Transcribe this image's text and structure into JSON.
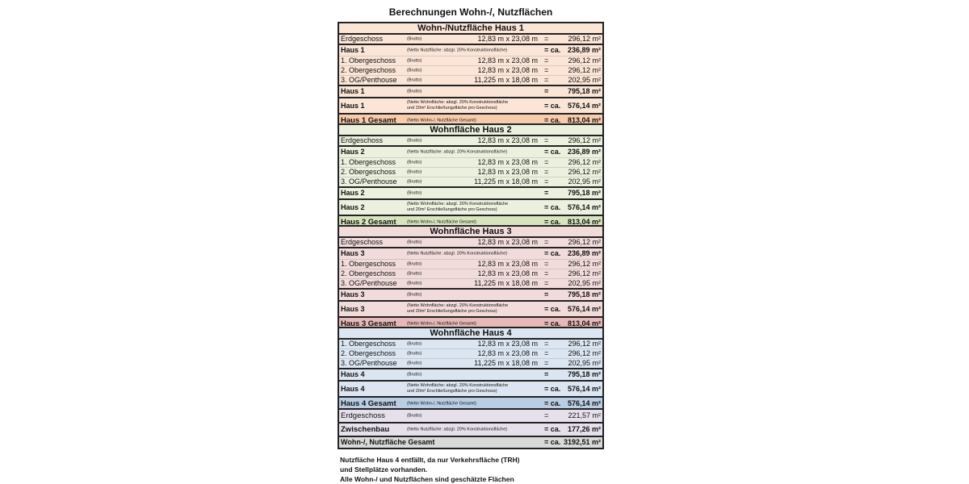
{
  "title": "Berechnungen Wohn-/, Nutzflächen",
  "colors": {
    "haus1": "#fbe5d6",
    "haus1_total": "#f8cbad",
    "haus2": "#ebf1de",
    "haus2_total": "#d7e4bd",
    "haus3": "#f2dcdb",
    "haus3_total": "#e6b9b8",
    "haus4": "#dce6f2",
    "haus4_total": "#b9cde5",
    "zwischenbau": "#e6e0ec",
    "total": "#d9d9d9"
  },
  "sections": [
    {
      "header": "Wohn-/Nutzfläche Haus 1",
      "color": "#fbe5d6",
      "total_color": "#f8cbad",
      "rows": [
        {
          "label": "Erdgeschoss",
          "note": "(Brutto)",
          "dims": "12,83 m  x  23,08 m",
          "eq": "=",
          "value": "296,12 m²"
        },
        {
          "label": "Haus 1",
          "note": "(Netto Nutzfläche: abzgl. 20% Konstruktionsfläche)",
          "eq": "=  ca.",
          "value": "236,89 m²",
          "bold": true
        },
        {
          "label": "1. Obergeschoss",
          "note": "(Brutto)",
          "dims": "12,83 m  x  23,08 m",
          "eq": "=",
          "value": "296,12 m²"
        },
        {
          "label": "2. Obergeschoss",
          "note": "(Brutto)",
          "dims": "12,83 m  x  23,08 m",
          "eq": "=",
          "value": "296,12 m²"
        },
        {
          "label": "3. OG/Penthouse",
          "note": "(Brutto)",
          "dims": "11,225 m  x  18,08 m",
          "eq": "=",
          "value": "202,95 m²"
        },
        {
          "label": "Haus 1",
          "note": "(Brutto)",
          "eq": "=",
          "value": "795,18 m²",
          "bold": true
        },
        {
          "label": "Haus 1",
          "note": "(Netto Wohnfläche: abzgl. 20% Konstruktionsfläche\nund 20m² Erschließungsfläche pro Geschoss)",
          "eq": "=  ca.",
          "value": "576,14 m²",
          "bold": true,
          "two_line": true
        },
        {
          "label": "Haus 1 Gesamt",
          "note": "(Netto Wohn-/, Nutzfläche Gesamt)",
          "eq": "=  ca.",
          "value": "813,04 m²",
          "bold": true,
          "total": true
        }
      ]
    },
    {
      "header": "Wohnfläche Haus 2",
      "color": "#ebf1de",
      "total_color": "#d7e4bd",
      "rows": [
        {
          "label": "Erdgeschoss",
          "note": "(Brutto)",
          "dims": "12,83 m  x  23,08 m",
          "eq": "=",
          "value": "296,12 m²"
        },
        {
          "label": "Haus 2",
          "note": "(Netto Nutzfläche: abzgl. 20% Konstruktionsfläche)",
          "eq": "=  ca.",
          "value": "236,89 m²",
          "bold": true
        },
        {
          "label": "1. Obergeschoss",
          "note": "(Brutto)",
          "dims": "12,83 m  x  23,08 m",
          "eq": "=",
          "value": "296,12 m²"
        },
        {
          "label": "2. Obergeschoss",
          "note": "(Brutto)",
          "dims": "12,83 m  x  23,08 m",
          "eq": "=",
          "value": "296,12 m²"
        },
        {
          "label": "3. OG/Penthouse",
          "note": "(Brutto)",
          "dims": "11,225 m  x  18,08 m",
          "eq": "=",
          "value": "202,95 m²"
        },
        {
          "label": "Haus 2",
          "note": "(Brutto)",
          "eq": "=",
          "value": "795,18 m²",
          "bold": true
        },
        {
          "label": "Haus 2",
          "note": "(Netto Wohnfläche: abzgl. 20% Konstruktionsfläche\nund 20m² Erschließungsfläche pro Geschoss)",
          "eq": "=  ca.",
          "value": "576,14 m²",
          "bold": true,
          "two_line": true
        },
        {
          "label": "Haus 2 Gesamt",
          "note": "(Netto Wohn-/, Nutzfläche Gesamt)",
          "eq": "=  ca.",
          "value": "813,04 m²",
          "bold": true,
          "total": true
        }
      ]
    },
    {
      "header": "Wohnfläche Haus 3",
      "color": "#f2dcdb",
      "total_color": "#e6b9b8",
      "rows": [
        {
          "label": "Erdgeschoss",
          "note": "(Brutto)",
          "dims": "12,83 m  x  23,08 m",
          "eq": "=",
          "value": "296,12 m²"
        },
        {
          "label": "Haus 3",
          "note": "(Netto Nutzfläche: abzgl. 20% Konstruktionsfläche)",
          "eq": "=  ca.",
          "value": "236,89 m²",
          "bold": true
        },
        {
          "label": "1. Obergeschoss",
          "note": "(Brutto)",
          "dims": "12,83 m  x  23,08 m",
          "eq": "=",
          "value": "296,12 m²"
        },
        {
          "label": "2. Obergeschoss",
          "note": "(Brutto)",
          "dims": "12,83 m  x  23,08 m",
          "eq": "=",
          "value": "296,12 m²"
        },
        {
          "label": "3. OG/Penthouse",
          "note": "(Brutto)",
          "dims": "11,225 m  x  18,08 m",
          "eq": "=",
          "value": "202,95 m²"
        },
        {
          "label": "Haus 3",
          "note": "(Brutto)",
          "eq": "=",
          "value": "795,18 m²",
          "bold": true
        },
        {
          "label": "Haus 3",
          "note": "(Netto Wohnfläche: abzgl. 20% Konstruktionsfläche\nund 20m² Erschließungsfläche pro Geschoss)",
          "eq": "=  ca.",
          "value": "576,14 m²",
          "bold": true,
          "two_line": true
        },
        {
          "label": "Haus 3 Gesamt",
          "note": "(Netto Wohn-/, Nutzfläche Gesamt)",
          "eq": "=  ca.",
          "value": "813,04 m²",
          "bold": true,
          "total": true
        }
      ]
    },
    {
      "header": "Wohnfläche Haus 4",
      "color": "#dce6f2",
      "total_color": "#b9cde5",
      "rows": [
        {
          "label": "1. Obergeschoss",
          "note": "(Brutto)",
          "dims": "12,83 m  x  23,08 m",
          "eq": "=",
          "value": "296,12 m²"
        },
        {
          "label": "2. Obergeschoss",
          "note": "(Brutto)",
          "dims": "12,83 m  x  23,08 m",
          "eq": "=",
          "value": "296,12 m²"
        },
        {
          "label": "3. OG/Penthouse",
          "note": "(Brutto)",
          "dims": "11,225 m  x  18,08 m",
          "eq": "=",
          "value": "202,95 m²"
        },
        {
          "label": "Haus 4",
          "note": "(Brutto)",
          "eq": "=",
          "value": "795,18 m²",
          "bold": true
        },
        {
          "label": "Haus 4",
          "note": "(Netto Wohnfläche: abzgl. 20% Konstruktionsfläche\nund 20m² Erschließungsfläche pro Geschoss)",
          "eq": "=  ca.",
          "value": "576,14 m²",
          "bold": true,
          "two_line": true
        },
        {
          "label": "Haus 4 Gesamt",
          "note": "(Netto Wohn-/, Nutzfläche Gesamt)",
          "eq": "=  ca.",
          "value": "576,14 m²",
          "bold": true,
          "total": true
        }
      ]
    },
    {
      "color": "#e6e0ec",
      "total_color": "#e6e0ec",
      "rows": [
        {
          "label": "Erdgeschoss",
          "note": "(Brutto)",
          "eq": "=",
          "value": "221,57 m²",
          "large": true
        },
        {
          "label": "Zwischenbau",
          "note": "(Netto Nutzfläche: abzgl. 20% Konstruktionsfläche)",
          "eq": "=  ca.",
          "value": "177,26 m²",
          "bold": true,
          "total": true
        }
      ]
    },
    {
      "color": "#d9d9d9",
      "total_color": "#d9d9d9",
      "rows": [
        {
          "label": "Wohn-/, Nutzfläche Gesamt",
          "eq": "=  ca.",
          "value": "3192,51 m²",
          "bold": true
        }
      ]
    }
  ],
  "notes": [
    "Nutzfläche Haus 4 entfällt, da nur Verkehrsfläche (TRH)",
    "und Stellplätze vorhanden.",
    "Alle Wohn-/ und Nutzflächen sind geschätzte Flächen"
  ]
}
